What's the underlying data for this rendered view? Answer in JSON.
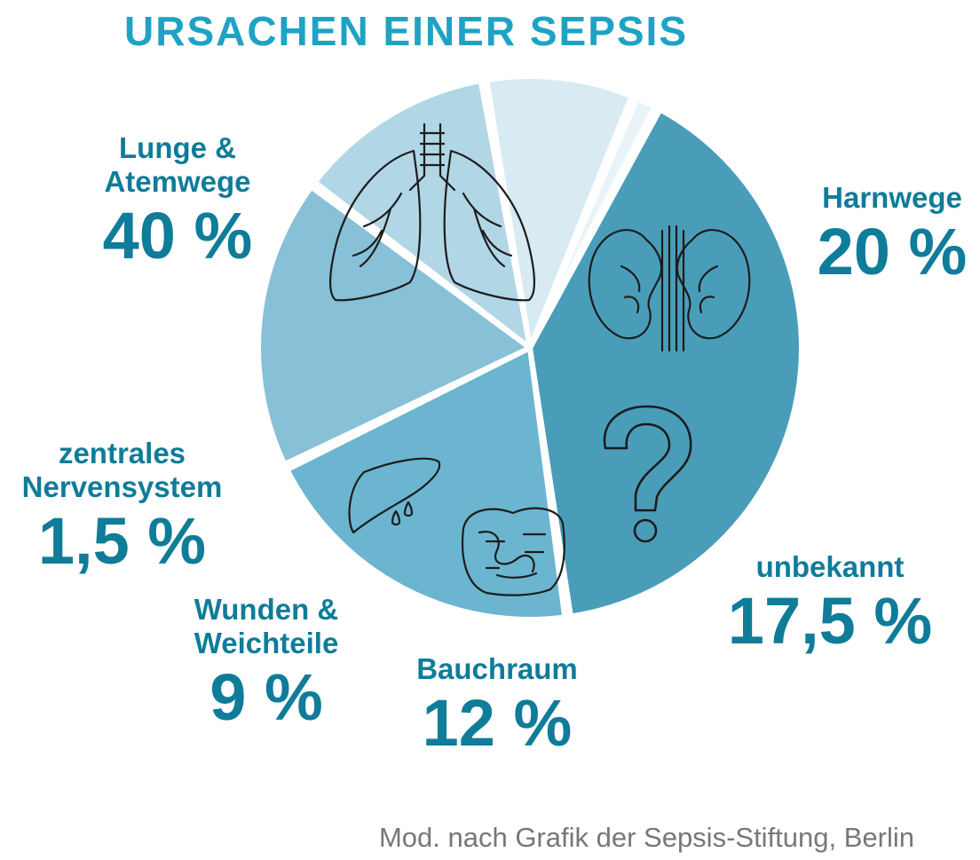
{
  "title": "URSACHEN EINER SEPSIS",
  "source": "Mod. nach Grafik der Sepsis-Stiftung, Berlin",
  "chart_data": {
    "type": "pie",
    "title": "URSACHEN EINER SEPSIS",
    "slices": [
      {
        "label": "Lunge & Atemwege",
        "label_lines": [
          "Lunge &",
          "Atemwege"
        ],
        "value": 40,
        "value_label": "40 %",
        "color": "#4a9db9",
        "icon": "lungs-icon"
      },
      {
        "label": "Harnwege",
        "label_lines": [
          "Harnwege"
        ],
        "value": 20,
        "value_label": "20 %",
        "color": "#6cb5d0",
        "icon": "kidneys-icon"
      },
      {
        "label": "unbekannt",
        "label_lines": [
          "unbekannt"
        ],
        "value": 17.5,
        "value_label": "17,5 %",
        "color": "#88c0d7",
        "icon": "question-mark-icon"
      },
      {
        "label": "Bauchraum",
        "label_lines": [
          "Bauchraum"
        ],
        "value": 12,
        "value_label": "12 %",
        "color": "#b1d6e6",
        "icon": "intestines-icon"
      },
      {
        "label": "Wunden & Weichteile",
        "label_lines": [
          "Wunden &",
          "Weichteile"
        ],
        "value": 9,
        "value_label": "9 %",
        "color": "#d8eaf2",
        "icon": "liver-icon"
      },
      {
        "label": "zentrales Nervensystem",
        "label_lines": [
          "zentrales",
          "Nervensystem"
        ],
        "value": 1.5,
        "value_label": "1,5 %",
        "color": "#eaf4f8",
        "icon": ""
      }
    ],
    "label_color": "#0f7c99",
    "title_color": "#1ea3c4"
  }
}
